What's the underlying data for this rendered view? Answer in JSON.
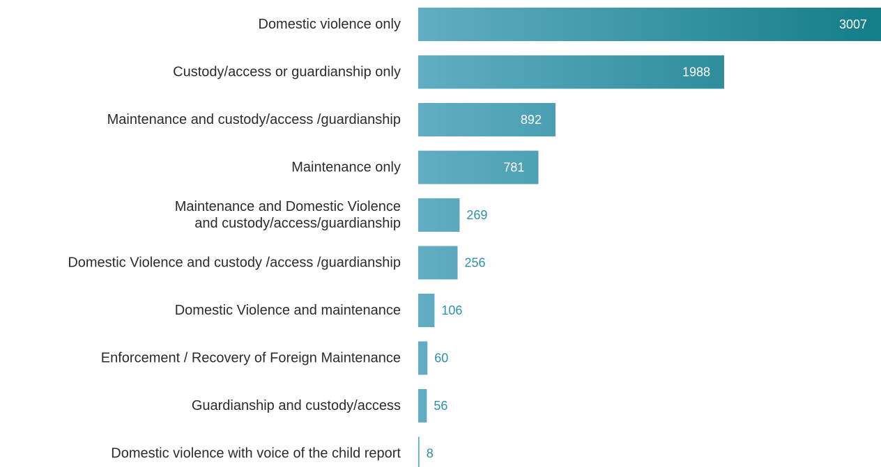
{
  "chart_data": {
    "type": "bar",
    "orientation": "horizontal",
    "categories": [
      "Domestic violence only",
      "Custody/access or guardianship only",
      "Maintenance and custody/access /guardianship",
      "Maintenance only",
      "Maintenance and Domestic Violence and custody/access/guardianship",
      "Domestic Violence and custody /access /guardianship",
      "Domestic Violence and maintenance",
      "Enforcement / Recovery of Foreign Maintenance",
      "Guardianship and custody/access",
      "Domestic violence with voice of the child report"
    ],
    "category_lines": [
      [
        "Domestic violence only"
      ],
      [
        "Custody/access or guardianship only"
      ],
      [
        "Maintenance and custody/access /guardianship"
      ],
      [
        "Maintenance only"
      ],
      [
        "Maintenance and Domestic Violence",
        "and custody/access/guardianship"
      ],
      [
        "Domestic Violence and custody /access /guardianship"
      ],
      [
        "Domestic Violence and maintenance"
      ],
      [
        "Enforcement / Recovery of Foreign Maintenance"
      ],
      [
        "Guardianship and custody/access"
      ],
      [
        "Domestic violence with voice of the child report"
      ]
    ],
    "values": [
      3007,
      1988,
      892,
      781,
      269,
      256,
      106,
      60,
      56,
      8
    ],
    "value_labels": [
      "3007",
      "1988",
      "892",
      "781",
      "269",
      "256",
      "106",
      "60",
      "56",
      "8"
    ],
    "xlim": [
      0,
      3007
    ],
    "grid": false,
    "legend": "none",
    "colors": {
      "bar_light": "#62adc3",
      "bar_dark": "#137d89",
      "label_inside": "#ffffff",
      "label_outside": "#2c92a6",
      "category_text": "#2b2b2b"
    }
  }
}
